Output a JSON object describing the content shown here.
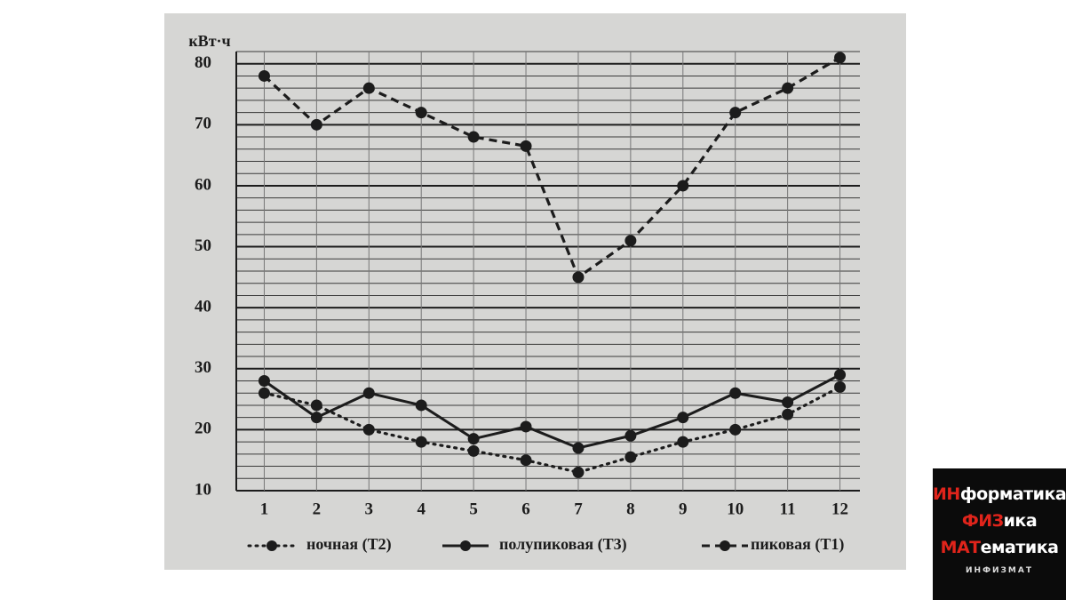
{
  "chart_data": {
    "type": "line",
    "y_label": "кВт·ч",
    "categories": [
      "1",
      "2",
      "3",
      "4",
      "5",
      "6",
      "7",
      "8",
      "9",
      "10",
      "11",
      "12"
    ],
    "ylim": [
      10,
      82
    ],
    "yticks": [
      10,
      20,
      30,
      40,
      50,
      60,
      70,
      80
    ],
    "yminor": [
      12,
      14,
      16,
      18,
      22,
      24,
      26,
      28,
      32,
      34,
      36,
      38,
      42,
      44,
      46,
      48,
      52,
      54,
      56,
      58,
      62,
      64,
      66,
      68,
      72,
      74,
      76,
      78,
      82
    ],
    "grid": true,
    "series": [
      {
        "name": "ночная (Т2)",
        "color": "#1c1c1c",
        "style": "dotted",
        "values": [
          26,
          24,
          20,
          18,
          16.5,
          15,
          13,
          15.5,
          18,
          20,
          22.5,
          27
        ]
      },
      {
        "name": "полупиковая (Т3)",
        "color": "#1c1c1c",
        "style": "solid",
        "values": [
          28,
          22,
          26,
          24,
          18.5,
          20.5,
          17,
          19,
          22,
          26,
          24.5,
          29
        ]
      },
      {
        "name": "пиковая (Т1)",
        "color": "#1c1c1c",
        "style": "dashed",
        "values": [
          78,
          70,
          76,
          72,
          68,
          66.5,
          45,
          51,
          60,
          72,
          76,
          81
        ]
      }
    ]
  },
  "logo": {
    "lines": [
      [
        "ИН",
        "форматика"
      ],
      [
        "ФИЗ",
        "ика"
      ],
      [
        "МАТ",
        "ематика"
      ]
    ],
    "caption": "ИНФИЗМАТ"
  }
}
